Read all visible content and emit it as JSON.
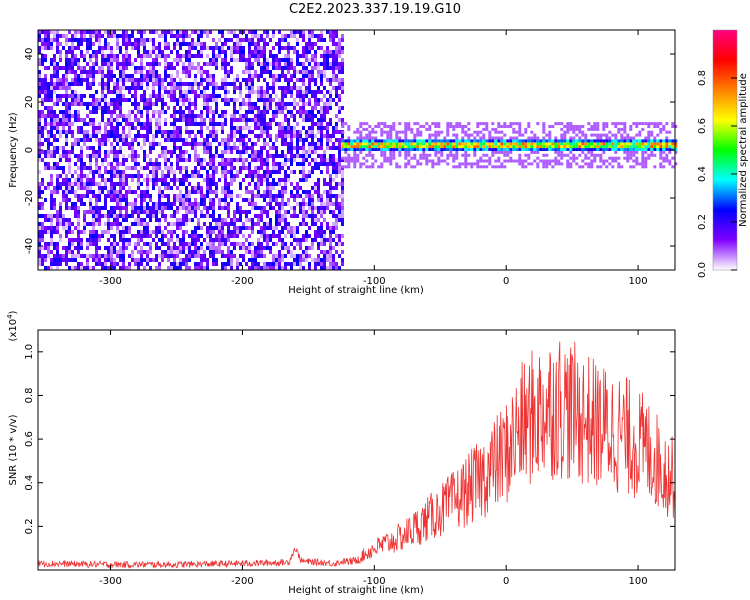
{
  "title": "C2E2.2023.337.19.19.G10",
  "chart_data": [
    {
      "type": "heatmap",
      "xlabel": "Height of straight line (km)",
      "ylabel": "Frequency (Hz)",
      "xlim": [
        -355,
        128
      ],
      "ylim": [
        -50,
        50
      ],
      "xticks": [
        -300,
        -200,
        -100,
        0,
        100
      ],
      "yticks": [
        -40,
        -20,
        0,
        20,
        40
      ],
      "colorbar": {
        "label": "Normalized spectral amplitude",
        "range": [
          0,
          1
        ],
        "ticks": [
          "0.0",
          "0.2",
          "0.4",
          "0.6",
          "0.8"
        ],
        "colors": [
          "#ffffff",
          "#8000ff",
          "#0000ff",
          "#00ffff",
          "#00ff00",
          "#ffff00",
          "#ff8000",
          "#ff0000",
          "#ff0080"
        ]
      },
      "regions": [
        {
          "x_range": [
            -355,
            -125
          ],
          "freq_range": [
            -50,
            50
          ],
          "amplitude": "0.05-0.3",
          "note": "broadband noise"
        },
        {
          "x_range": [
            -125,
            128
          ],
          "center_freq_hz": 2,
          "width_hz": 6,
          "amplitude_max": 1.0,
          "note": "narrow signal band near 0 Hz"
        }
      ]
    },
    {
      "type": "line",
      "xlabel": "Height of straight line (km)",
      "ylabel": "SNR (10 * v/v)",
      "y_multiplier": "(x10^4)",
      "xlim": [
        -355,
        128
      ],
      "ylim": [
        0,
        1.1
      ],
      "xticks": [
        -300,
        -200,
        -100,
        0,
        100
      ],
      "yticks": [
        "0.2",
        "0.4",
        "0.6",
        "0.8",
        "1.0"
      ],
      "series": [
        {
          "color": "#ee3333",
          "x": [
            -355,
            -300,
            -250,
            -200,
            -165,
            -160,
            -155,
            -130,
            -115,
            -100,
            -80,
            -60,
            -40,
            -20,
            0,
            10,
            20,
            30,
            40,
            50,
            60,
            70,
            80,
            90,
            100,
            110,
            120,
            128
          ],
          "y": [
            0.03,
            0.025,
            0.025,
            0.03,
            0.035,
            0.1,
            0.04,
            0.03,
            0.05,
            0.12,
            0.18,
            0.28,
            0.38,
            0.5,
            0.65,
            0.78,
            0.85,
            0.9,
            0.92,
            0.88,
            0.84,
            0.8,
            0.78,
            0.75,
            0.7,
            0.65,
            0.55,
            0.5
          ]
        }
      ]
    }
  ]
}
